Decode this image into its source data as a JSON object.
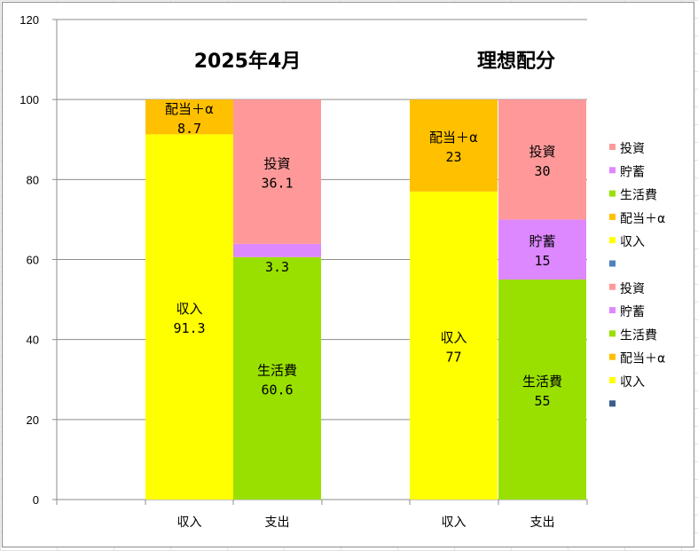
{
  "chart_data": {
    "type": "bar",
    "stacked": true,
    "ylim": [
      0,
      120
    ],
    "yticks": [
      0,
      20,
      40,
      60,
      80,
      100,
      120
    ],
    "grid": true,
    "legend_position": "right",
    "groups": [
      {
        "title": "2025年4月",
        "bars": [
          {
            "category": "収入",
            "segments": [
              {
                "name": "収入",
                "value": 91.3,
                "color": "#ffff00",
                "label": "91.3"
              },
              {
                "name": "配当＋α",
                "value": 8.7,
                "color": "#ffc000",
                "label": "8.7"
              }
            ]
          },
          {
            "category": "支出",
            "segments": [
              {
                "name": "生活費",
                "value": 60.6,
                "color": "#99e000",
                "label": "60.6"
              },
              {
                "name": "貯蓄",
                "value": 3.3,
                "color": "#dd88ff",
                "label": "3.3"
              },
              {
                "name": "投資",
                "value": 36.1,
                "color": "#ff9999",
                "label": "36.1"
              }
            ]
          }
        ]
      },
      {
        "title": "理想配分",
        "bars": [
          {
            "category": "収入",
            "segments": [
              {
                "name": "収入",
                "value": 77,
                "color": "#ffff00",
                "label": "77"
              },
              {
                "name": "配当＋α",
                "value": 23,
                "color": "#ffc000",
                "label": "23"
              }
            ]
          },
          {
            "category": "支出",
            "segments": [
              {
                "name": "生活費",
                "value": 55,
                "color": "#99e000",
                "label": "55"
              },
              {
                "name": "貯蓄",
                "value": 15,
                "color": "#dd88ff",
                "label": "15"
              },
              {
                "name": "投資",
                "value": 30,
                "color": "#ff9999",
                "label": "30"
              }
            ]
          }
        ]
      }
    ],
    "legend": [
      {
        "name": "投資",
        "color": "#ff9999"
      },
      {
        "name": "貯蓄",
        "color": "#dd88ff"
      },
      {
        "name": "生活費",
        "color": "#99e000"
      },
      {
        "name": "配当＋α",
        "color": "#ffc000"
      },
      {
        "name": "収入",
        "color": "#ffff00"
      },
      {
        "name": "",
        "color": "#4f81bd"
      },
      {
        "name": "投資",
        "color": "#ff9999"
      },
      {
        "name": "貯蓄",
        "color": "#dd88ff"
      },
      {
        "name": "生活費",
        "color": "#99e000"
      },
      {
        "name": "配当＋α",
        "color": "#ffc000"
      },
      {
        "name": "収入",
        "color": "#ffff00"
      },
      {
        "name": "",
        "color": "#3a5f8a"
      }
    ]
  }
}
